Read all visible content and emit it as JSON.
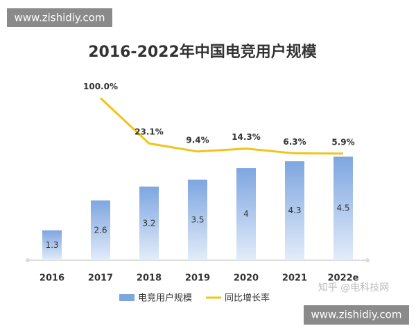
{
  "chart_data": {
    "type": "bar-line",
    "title": "2016-2022年中国电竞用户规模",
    "categories": [
      "2016",
      "2017",
      "2018",
      "2019",
      "2020",
      "2021",
      "2022e"
    ],
    "series": [
      {
        "name": "电竞用户规模",
        "type": "bar",
        "color": "#7ea6e0",
        "values": [
          1.3,
          2.6,
          3.2,
          3.5,
          4.0,
          4.3,
          4.5
        ]
      },
      {
        "name": "同比增长率",
        "type": "line",
        "axis": "y2",
        "color": "#f0c419",
        "values": [
          null,
          100.0,
          23.1,
          9.4,
          14.3,
          6.3,
          5.9
        ],
        "value_labels": [
          null,
          "100.0%",
          "23.1%",
          "9.4%",
          "14.3%",
          "6.3%",
          "5.9%"
        ]
      }
    ],
    "ylim": [
      0,
      8.3
    ],
    "y2lim": [
      -175,
      149
    ],
    "legend": "bottom",
    "watermarks": [
      "www.zishidiy.com",
      "知乎 @电科技网",
      "www.zishidiy.com"
    ]
  }
}
